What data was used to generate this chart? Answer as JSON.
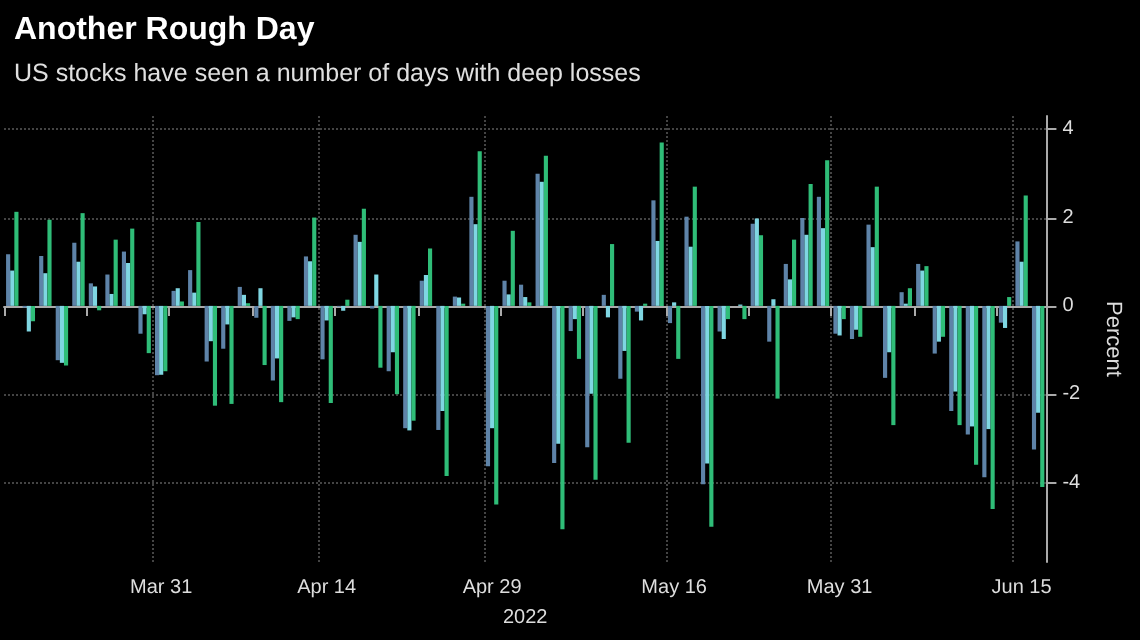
{
  "chart_data": {
    "type": "bar",
    "title": "Another Rough Day",
    "subtitle": "US stocks have seen a number of days with deep losses",
    "xlabel": "2022",
    "ylabel": "Percent",
    "categories": [
      null,
      null,
      null,
      null,
      null,
      null,
      null,
      null,
      null,
      "Mar 31",
      null,
      null,
      null,
      null,
      null,
      null,
      null,
      null,
      null,
      "Apr 14",
      null,
      null,
      null,
      null,
      null,
      null,
      null,
      null,
      null,
      "Apr 29",
      null,
      null,
      null,
      null,
      null,
      null,
      null,
      null,
      null,
      null,
      "May 16",
      null,
      null,
      null,
      null,
      null,
      null,
      null,
      null,
      null,
      "May 31",
      null,
      null,
      null,
      null,
      null,
      null,
      null,
      null,
      null,
      null,
      "Jun 15",
      null
    ],
    "series": [
      {
        "color": "#5e83a8",
        "values": [
          1.17,
          -0.04,
          1.13,
          -1.23,
          1.43,
          0.51,
          0.71,
          1.23,
          -0.63,
          -1.57,
          0.34,
          0.81,
          -1.26,
          -0.97,
          0.43,
          -0.27,
          -1.69,
          -0.34,
          1.12,
          -1.21,
          -0.02,
          1.61,
          -0.06,
          -1.48,
          -2.77,
          0.57,
          -2.81,
          0.21,
          2.47,
          -3.63,
          0.57,
          0.48,
          2.99,
          -3.56,
          -0.57,
          -3.2,
          0.25,
          -1.65,
          -0.13,
          2.39,
          -0.39,
          2.02,
          -4.04,
          -0.58,
          null,
          1.86,
          -0.81,
          0.95,
          1.99,
          2.47,
          -0.63,
          -0.75,
          1.84,
          -1.63,
          0.31,
          0.95,
          -1.08,
          -2.38,
          -2.91,
          -3.88,
          -0.38,
          1.46,
          -3.25
        ]
      },
      {
        "color": "#7fd6e2",
        "values": [
          0.8,
          -0.58,
          0.74,
          -1.29,
          1.0,
          0.44,
          0.27,
          0.97,
          -0.19,
          -1.56,
          0.4,
          0.3,
          -0.8,
          -0.42,
          0.25,
          0.4,
          -1.19,
          -0.26,
          1.01,
          -0.33,
          -0.11,
          1.45,
          0.71,
          -1.05,
          -2.82,
          0.7,
          -2.38,
          0.19,
          1.85,
          -2.77,
          0.26,
          0.2,
          2.81,
          -3.12,
          -0.3,
          -1.99,
          -0.26,
          -1.02,
          -0.33,
          1.47,
          0.08,
          1.34,
          -3.57,
          -0.75,
          0.03,
          1.98,
          0.15,
          0.6,
          1.61,
          1.76,
          -0.67,
          -0.54,
          1.33,
          -1.05,
          0.05,
          0.8,
          -0.81,
          -1.94,
          -2.73,
          -2.79,
          -0.5,
          1.0,
          -2.42
        ]
      },
      {
        "color": "#2fbd78",
        "values": [
          2.13,
          -0.35,
          1.95,
          -1.35,
          2.1,
          -0.1,
          1.5,
          1.75,
          -1.07,
          -1.48,
          0.1,
          1.9,
          -2.26,
          -2.22,
          0.06,
          -1.34,
          -2.18,
          -0.3,
          2.0,
          -2.2,
          0.14,
          2.2,
          -1.4,
          -2.0,
          -2.6,
          1.3,
          -3.85,
          0.05,
          3.5,
          -4.5,
          1.7,
          0.08,
          3.4,
          -5.06,
          -1.2,
          -3.94,
          1.4,
          -3.1,
          0.05,
          3.7,
          -1.2,
          2.7,
          -5.0,
          -0.3,
          -0.3,
          1.6,
          -2.1,
          1.5,
          2.76,
          3.3,
          -0.3,
          -0.7,
          2.7,
          -2.7,
          0.4,
          0.9,
          -0.7,
          -2.7,
          -3.6,
          -4.6,
          0.2,
          2.5,
          -4.1
        ]
      }
    ],
    "ylim": [
      -5.8,
      4.3
    ],
    "yticks": [
      -4,
      -2,
      0,
      2,
      4
    ],
    "grid": true
  }
}
